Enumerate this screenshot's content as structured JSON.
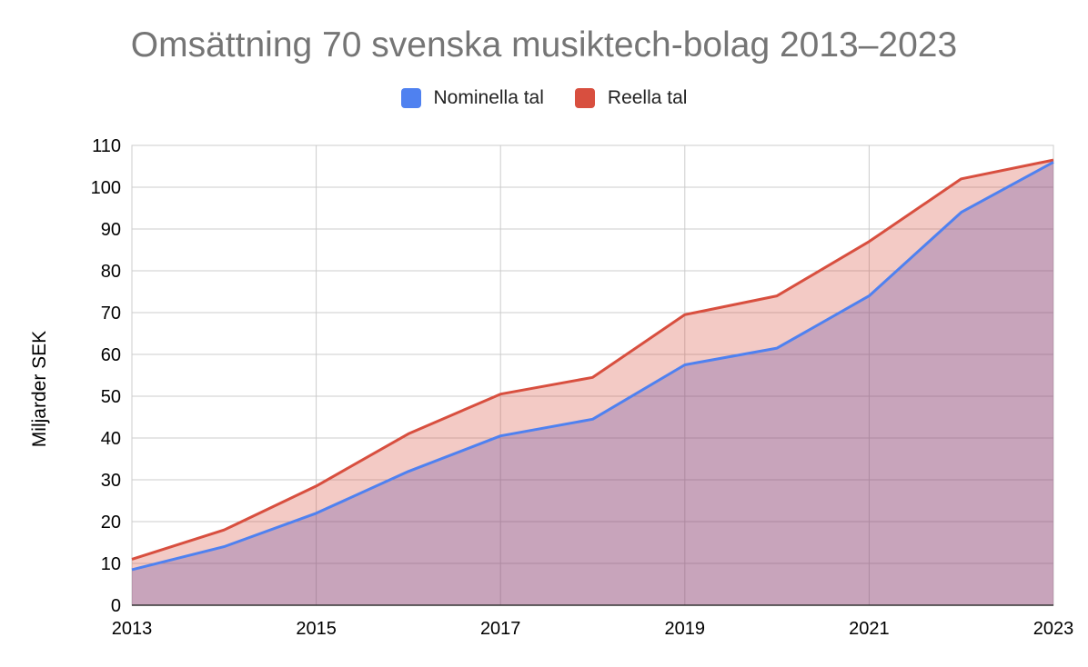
{
  "chart_data": {
    "type": "area",
    "title": "Omsättning 70 svenska musiktech-bolag 2013–2023",
    "xlabel": "",
    "ylabel": "Miljarder SEK",
    "x": [
      2013,
      2014,
      2015,
      2016,
      2017,
      2018,
      2019,
      2020,
      2021,
      2022,
      2023
    ],
    "x_tick_labels": [
      "2013",
      "2015",
      "2017",
      "2019",
      "2021",
      "2023"
    ],
    "y_tick_labels": [
      "0",
      "10",
      "20",
      "30",
      "40",
      "50",
      "60",
      "70",
      "80",
      "90",
      "100",
      "110"
    ],
    "xlim": [
      2013,
      2023
    ],
    "ylim": [
      0,
      110
    ],
    "grid": true,
    "legend_position": "top",
    "series": [
      {
        "name": "Nominella tal",
        "color": "#4f81f0",
        "values": [
          8.5,
          14,
          22,
          32,
          40.5,
          44.5,
          57.5,
          61.5,
          74,
          94,
          106
        ]
      },
      {
        "name": "Reella tal",
        "color": "#d84f3f",
        "values": [
          11,
          18,
          28.5,
          41,
          50.5,
          54.5,
          69.5,
          74,
          87,
          102,
          106.5
        ]
      }
    ]
  }
}
